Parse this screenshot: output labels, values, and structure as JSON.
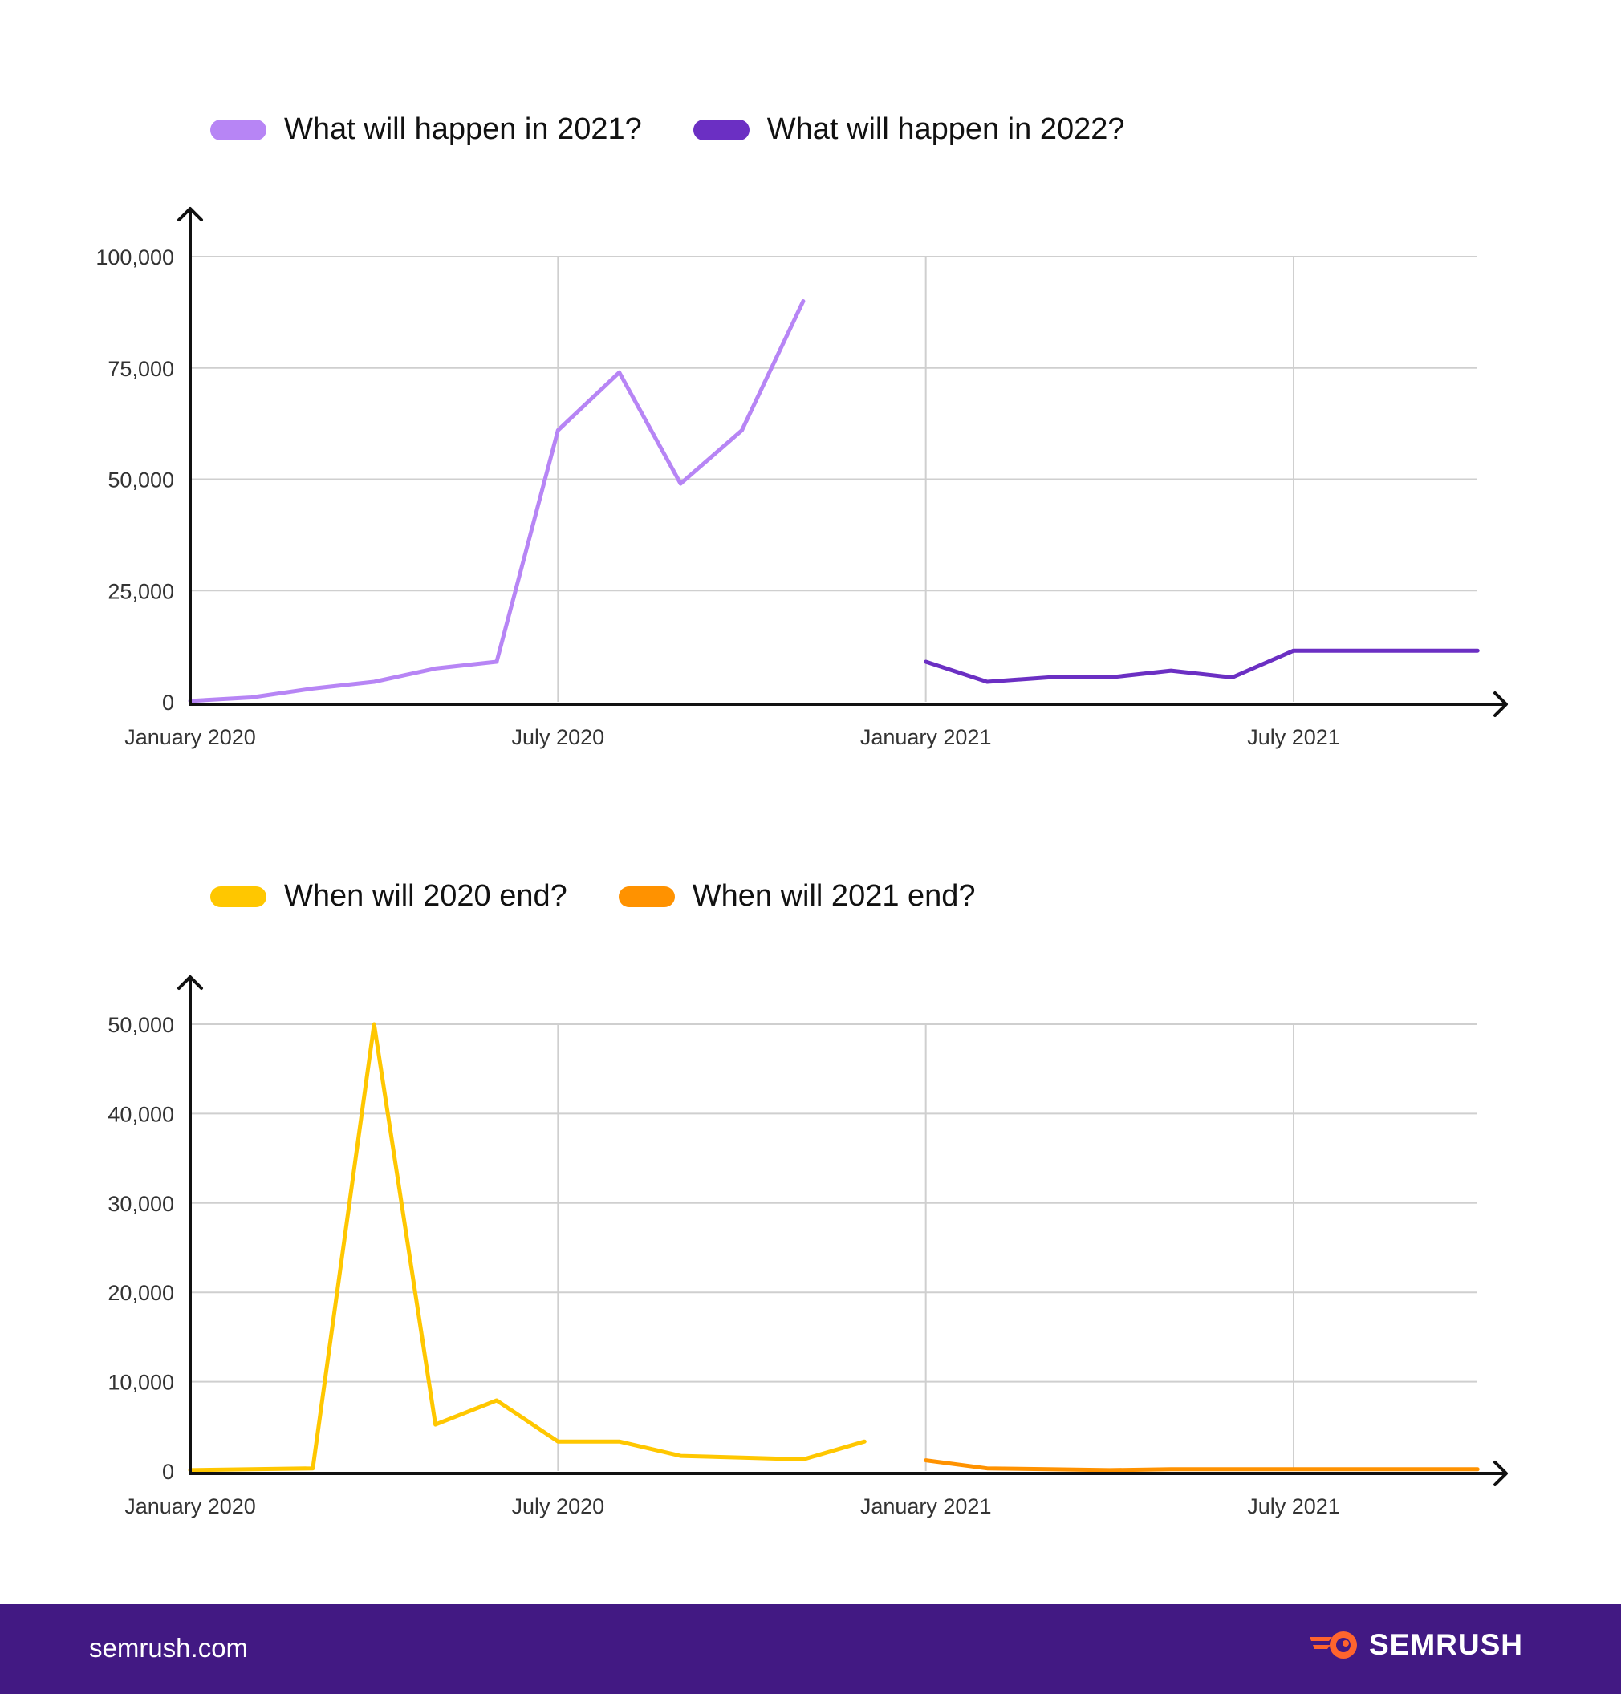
{
  "chart_data": [
    {
      "type": "line",
      "legend_position": "top-left",
      "grid": true,
      "x_ticks": [
        "January 2020",
        "July 2020",
        "January 2021",
        "July 2021"
      ],
      "y_ticks": [
        "0",
        "25,000",
        "50,000",
        "75,000",
        "100,000"
      ],
      "ylim": [
        0,
        100000
      ],
      "series": [
        {
          "name": "What will happen in 2021?",
          "color": "#B785F5",
          "x": [
            "2020-01",
            "2020-02",
            "2020-03",
            "2020-04",
            "2020-05",
            "2020-06",
            "2020-07",
            "2020-08",
            "2020-09",
            "2020-10",
            "2020-11",
            "2020-12"
          ],
          "values": [
            200,
            1000,
            3000,
            4500,
            7500,
            9000,
            61000,
            74000,
            49000,
            61000,
            90000,
            null
          ]
        },
        {
          "name": "What will happen in 2022?",
          "color": "#6B2FC3",
          "x": [
            "2021-01",
            "2021-02",
            "2021-03",
            "2021-04",
            "2021-05",
            "2021-06",
            "2021-07",
            "2021-08",
            "2021-09",
            "2021-10"
          ],
          "values": [
            9000,
            4500,
            5500,
            5500,
            7000,
            5500,
            11500,
            11500,
            11500,
            11500
          ]
        }
      ]
    },
    {
      "type": "line",
      "legend_position": "top-left",
      "grid": true,
      "x_ticks": [
        "January 2020",
        "July 2020",
        "January 2021",
        "July 2021"
      ],
      "y_ticks": [
        "0",
        "10,000",
        "20,000",
        "30,000",
        "40,000",
        "50,000"
      ],
      "ylim": [
        0,
        50000
      ],
      "series": [
        {
          "name": "When will 2020 end?",
          "color": "#FFC700",
          "x": [
            "2020-01",
            "2020-02",
            "2020-03",
            "2020-04",
            "2020-05",
            "2020-06",
            "2020-07",
            "2020-08",
            "2020-09",
            "2020-10",
            "2020-11",
            "2020-12"
          ],
          "values": [
            100,
            200,
            300,
            50000,
            5200,
            7900,
            3300,
            3300,
            1700,
            1500,
            1300,
            3300
          ]
        },
        {
          "name": "When will 2021 end?",
          "color": "#FF9200",
          "x": [
            "2021-01",
            "2021-02",
            "2021-03",
            "2021-04",
            "2021-05",
            "2021-06",
            "2021-07",
            "2021-08",
            "2021-09",
            "2021-10"
          ],
          "values": [
            1200,
            300,
            200,
            100,
            200,
            200,
            200,
            200,
            200,
            200
          ]
        }
      ]
    }
  ],
  "footer": {
    "url": "semrush.com",
    "brand": "SEMRUSH",
    "logo_icon": "semrush-fireball-icon"
  }
}
